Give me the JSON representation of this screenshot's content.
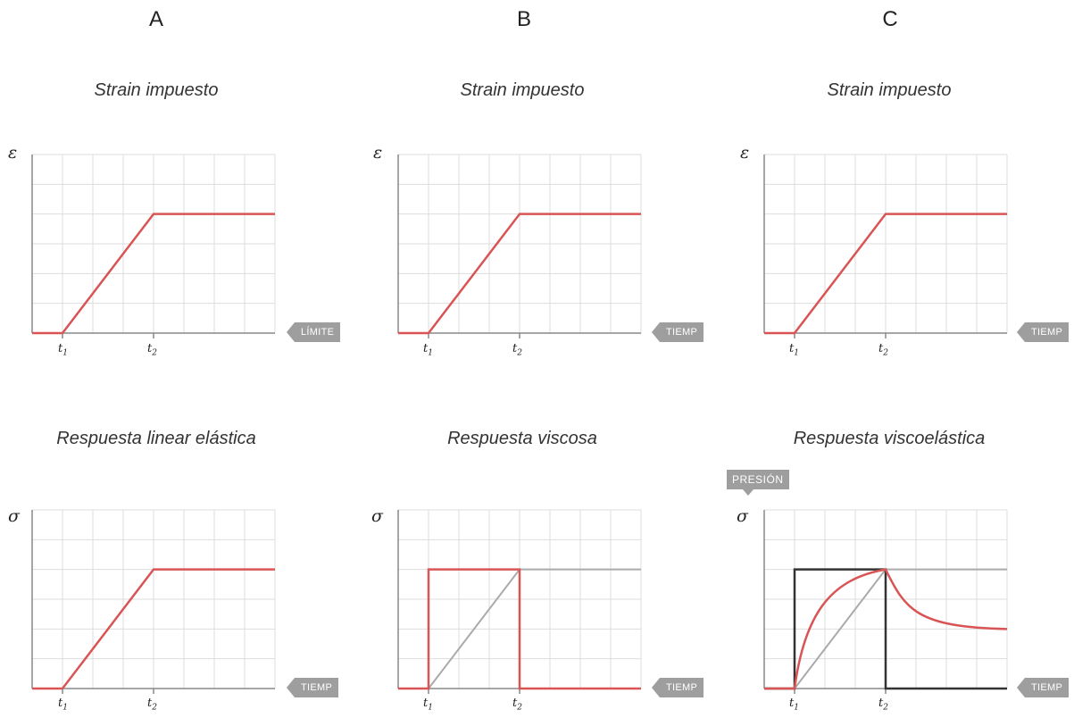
{
  "columns": [
    "A",
    "B",
    "C"
  ],
  "top_title": "Strain impuesto",
  "bottom_titles": [
    "Respuesta linear elástica",
    "Respuesta viscosa",
    "Respuesta viscoelástica"
  ],
  "epsilon": "ε",
  "sigma": "σ",
  "t1": "t",
  "t1_sub": "1",
  "t2": "t",
  "t2_sub": "2",
  "tags": {
    "a_top": "LÍMITE",
    "b_top": "TIEMP",
    "c_top": "TIEMP",
    "a_bottom": "TIEMP",
    "b_bottom": "TIEMP",
    "c_bottom": "TIEMP",
    "pressure": "PRESIÓN"
  },
  "colors": {
    "red": "#d95555",
    "grid": "#dddddd",
    "axis": "#888888",
    "dark": "#333333",
    "gray_curve": "#aaaaaa",
    "tag_bg": "#9e9e9e"
  }
}
